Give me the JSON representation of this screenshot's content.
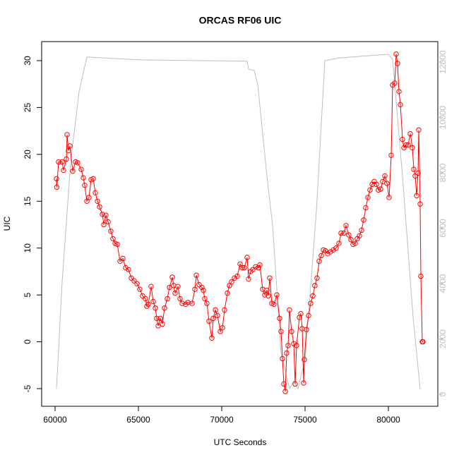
{
  "chart_data": {
    "type": "line",
    "title": "ORCAS RF06 UIC",
    "xlabel": "UTC Seconds",
    "ylabel": "UIC",
    "xlim": [
      59195,
      82966
    ],
    "xticks": [
      60000,
      65000,
      70000,
      75000,
      80000
    ],
    "ylim": [
      -6.88,
      32.03
    ],
    "yticks": [
      -5,
      0,
      5,
      10,
      15,
      20,
      25,
      30
    ],
    "y2lim": [
      -433,
      12739
    ],
    "y2ticks": [
      0,
      2000,
      4000,
      6000,
      8000,
      10000,
      12000
    ],
    "series": [
      {
        "color": "#ff0000",
        "marker": "circle",
        "x": [
          60085,
          60100,
          60212,
          60424,
          60508,
          60678,
          60720,
          60805,
          60890,
          61059,
          61229,
          61356,
          61568,
          61695,
          61780,
          61907,
          62034,
          62161,
          62288,
          62415,
          62542,
          62669,
          62839,
          62924,
          63051,
          63178,
          63347,
          63474,
          63601,
          63729,
          63898,
          64068,
          64237,
          64406,
          64576,
          64745,
          64915,
          65084,
          65254,
          65423,
          65508,
          65593,
          65762,
          65889,
          66017,
          66101,
          66186,
          66313,
          66440,
          66567,
          66737,
          66864,
          67033,
          67118,
          67203,
          67372,
          67499,
          67627,
          67838,
          67966,
          68220,
          68389,
          68474,
          68643,
          68813,
          68898,
          68982,
          69110,
          69237,
          69406,
          69491,
          69618,
          69745,
          69915,
          70042,
          70169,
          70338,
          70465,
          70593,
          70762,
          70931,
          71101,
          71228,
          71355,
          71524,
          71609,
          71736,
          71864,
          72033,
          72203,
          72287,
          72457,
          72584,
          72711,
          72796,
          72880,
          73008,
          73135,
          73304,
          73474,
          73558,
          73643,
          73728,
          73813,
          73897,
          73982,
          74067,
          74194,
          74321,
          74406,
          74491,
          74660,
          74745,
          74829,
          74914,
          74957,
          75084,
          75211,
          75338,
          75465,
          75592,
          75719,
          75846,
          75973,
          76101,
          76228,
          76355,
          76524,
          76694,
          76863,
          77033,
          77160,
          77329,
          77456,
          77626,
          77753,
          77880,
          78007,
          78134,
          78261,
          78389,
          78516,
          78643,
          78770,
          78897,
          79024,
          79151,
          79278,
          79405,
          79533,
          79660,
          79787,
          79914,
          80041,
          80168,
          80253,
          80380,
          80465,
          80549,
          80634,
          80719,
          80846,
          80931,
          81058,
          81185,
          81312,
          81439,
          81524,
          81609,
          81694,
          81778,
          81821,
          81906,
          81948,
          82033,
          82076
        ],
        "values": [
          17.4,
          16.5,
          19.2,
          19.2,
          18.3,
          19.5,
          22.1,
          20.4,
          20.9,
          18.2,
          19.2,
          19.1,
          18.4,
          17.5,
          16.7,
          15.0,
          15.4,
          17.3,
          17.4,
          15.9,
          15.0,
          14.4,
          13.6,
          12.5,
          13.5,
          12.8,
          11.8,
          11.0,
          10.5,
          10.4,
          8.6,
          8.9,
          7.9,
          7.7,
          6.8,
          6.5,
          6.2,
          5.6,
          4.9,
          4.6,
          3.8,
          4.0,
          5.9,
          4.3,
          3.6,
          2.5,
          1.7,
          2.5,
          1.9,
          3.6,
          4.6,
          5.8,
          6.9,
          6.0,
          5.2,
          5.9,
          4.6,
          4.1,
          4.0,
          4.2,
          4.1,
          5.6,
          7.1,
          6.1,
          5.8,
          5.5,
          4.6,
          4.1,
          2.2,
          0.4,
          2.5,
          3.4,
          2.8,
          1.1,
          1.5,
          3.4,
          5.2,
          6.0,
          6.4,
          6.8,
          7.0,
          8.3,
          7.9,
          7.9,
          9.0,
          6.7,
          7.5,
          7.7,
          8.0,
          7.9,
          8.2,
          5.6,
          5.0,
          5.5,
          4.9,
          6.8,
          4.1,
          4.0,
          5.0,
          2.5,
          1.1,
          -1.8,
          -4.5,
          -5.3,
          -1.2,
          -0.4,
          3.4,
          1.1,
          -0.2,
          -4.5,
          -0.4,
          2.6,
          3.0,
          1.4,
          -4.4,
          -1.9,
          1.3,
          2.8,
          4.1,
          4.9,
          6.0,
          6.8,
          8.6,
          9.2,
          9.8,
          9.7,
          9.4,
          9.6,
          9.8,
          10.0,
          10.5,
          11.6,
          11.6,
          12.4,
          11.4,
          10.9,
          10.4,
          10.5,
          11.0,
          11.3,
          11.9,
          13.0,
          14.3,
          15.4,
          16.2,
          16.8,
          17.1,
          16.8,
          16.2,
          16.3,
          17.1,
          17.7,
          16.9,
          15.4,
          19.9,
          27.4,
          27.6,
          30.7,
          29.7,
          26.7,
          25.3,
          21.6,
          20.7,
          21.0,
          21.0,
          22.2,
          20.7,
          18.4,
          17.7,
          15.6,
          18.0,
          22.6,
          14.7,
          7.0,
          0.0,
          0.0
        ]
      },
      {
        "color": "#bebebe",
        "axis": "y2",
        "x": [
          60085,
          60424,
          60932,
          61441,
          61907,
          65170,
          71525,
          71610,
          71949,
          72161,
          72712,
          73051,
          73220,
          73560,
          74068,
          74322,
          74576,
          75000,
          75678,
          76186,
          76610,
          77034,
          80000,
          80254,
          80847,
          81483,
          81907
        ],
        "values": [
          204,
          4050,
          8380,
          10930,
          12180,
          12080,
          12030,
          11745,
          11690,
          11185,
          7870,
          6090,
          4560,
          1500,
          204,
          484,
          204,
          1250,
          6600,
          12050,
          12100,
          12150,
          12280,
          12100,
          7870,
          2780,
          178
        ]
      }
    ]
  }
}
